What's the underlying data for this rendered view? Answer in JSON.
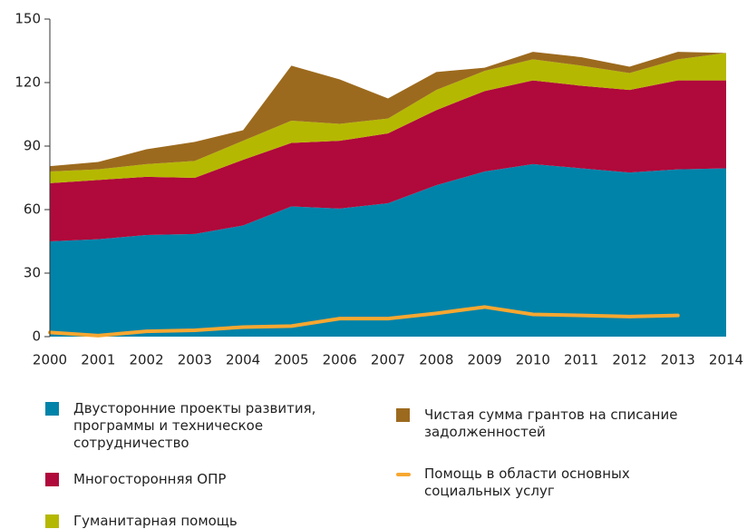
{
  "chart_data": {
    "type": "area",
    "x": [
      2000,
      2001,
      2002,
      2003,
      2004,
      2005,
      2006,
      2007,
      2008,
      2009,
      2010,
      2011,
      2012,
      2013,
      2014
    ],
    "xlim": [
      2000,
      2014
    ],
    "xticks": [
      2000,
      2001,
      2002,
      2003,
      2004,
      2005,
      2006,
      2007,
      2008,
      2009,
      2010,
      2011,
      2012,
      2013,
      2014
    ],
    "ylim": [
      0,
      150
    ],
    "yticks": [
      0,
      30,
      60,
      90,
      120,
      150
    ],
    "stacked": true,
    "series": [
      {
        "name": "Двусторонние проекты развития, программы и техническое сотрудничество",
        "type": "area",
        "color": "#0083a9",
        "values": [
          45,
          46,
          48,
          48.5,
          52.5,
          61.5,
          60.5,
          63,
          71.5,
          78,
          81.5,
          79.5,
          77.5,
          79,
          79.5
        ]
      },
      {
        "name": "Многосторонняя ОПР",
        "type": "area",
        "color": "#b0093b",
        "values": [
          27.5,
          28,
          27.5,
          26.5,
          31,
          30,
          32,
          33,
          35.5,
          38,
          39.5,
          39,
          39,
          42,
          41.5
        ]
      },
      {
        "name": "Гуманитарная помощь",
        "type": "area",
        "color": "#b5b800",
        "values": [
          5.5,
          5,
          6,
          8,
          9,
          10.5,
          8,
          7,
          9.5,
          9.5,
          10,
          9.5,
          8,
          10,
          13
        ]
      },
      {
        "name": "Чистая сумма грантов на списание задолженностей",
        "type": "area",
        "color": "#9c6a1e",
        "values": [
          2.5,
          3.5,
          7,
          9,
          5,
          26,
          21,
          9.5,
          8.5,
          1.5,
          3.5,
          4,
          3,
          3.5,
          0
        ]
      },
      {
        "name": "Помощь в области основных социальных услуг",
        "type": "line",
        "color": "#f7a731",
        "values": [
          2,
          0.5,
          2.5,
          3,
          4.5,
          5,
          8.5,
          8.5,
          11,
          14,
          10.5,
          10,
          9.5,
          10,
          null
        ]
      }
    ]
  }
}
